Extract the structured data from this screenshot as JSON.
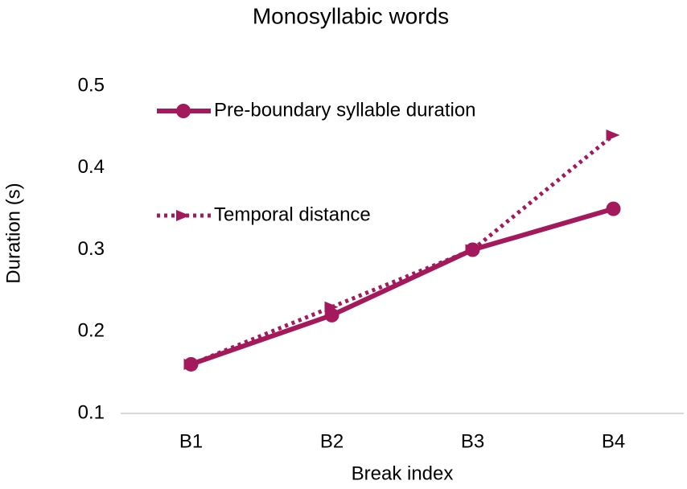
{
  "chart_data": {
    "type": "line",
    "title": "Monosyllabic words",
    "x_label": "Break index",
    "y_label": "Duration (s)",
    "categories": [
      "B1",
      "B2",
      "B3",
      "B4"
    ],
    "series": [
      {
        "name": "Pre-boundary syllable duration",
        "color": "#a3195b",
        "line_style": "solid",
        "values": [
          0.16,
          0.22,
          0.3,
          0.35
        ]
      },
      {
        "name": "Temporal distance",
        "color": "#a3195b",
        "line_style": "dotted",
        "values": [
          0.16,
          0.23,
          0.3,
          0.44
        ]
      }
    ],
    "ylim": [
      0.1,
      0.5
    ],
    "yticks": [
      0.1,
      0.2,
      0.3,
      0.4,
      0.5
    ],
    "grid": false,
    "legend": "upper left"
  }
}
